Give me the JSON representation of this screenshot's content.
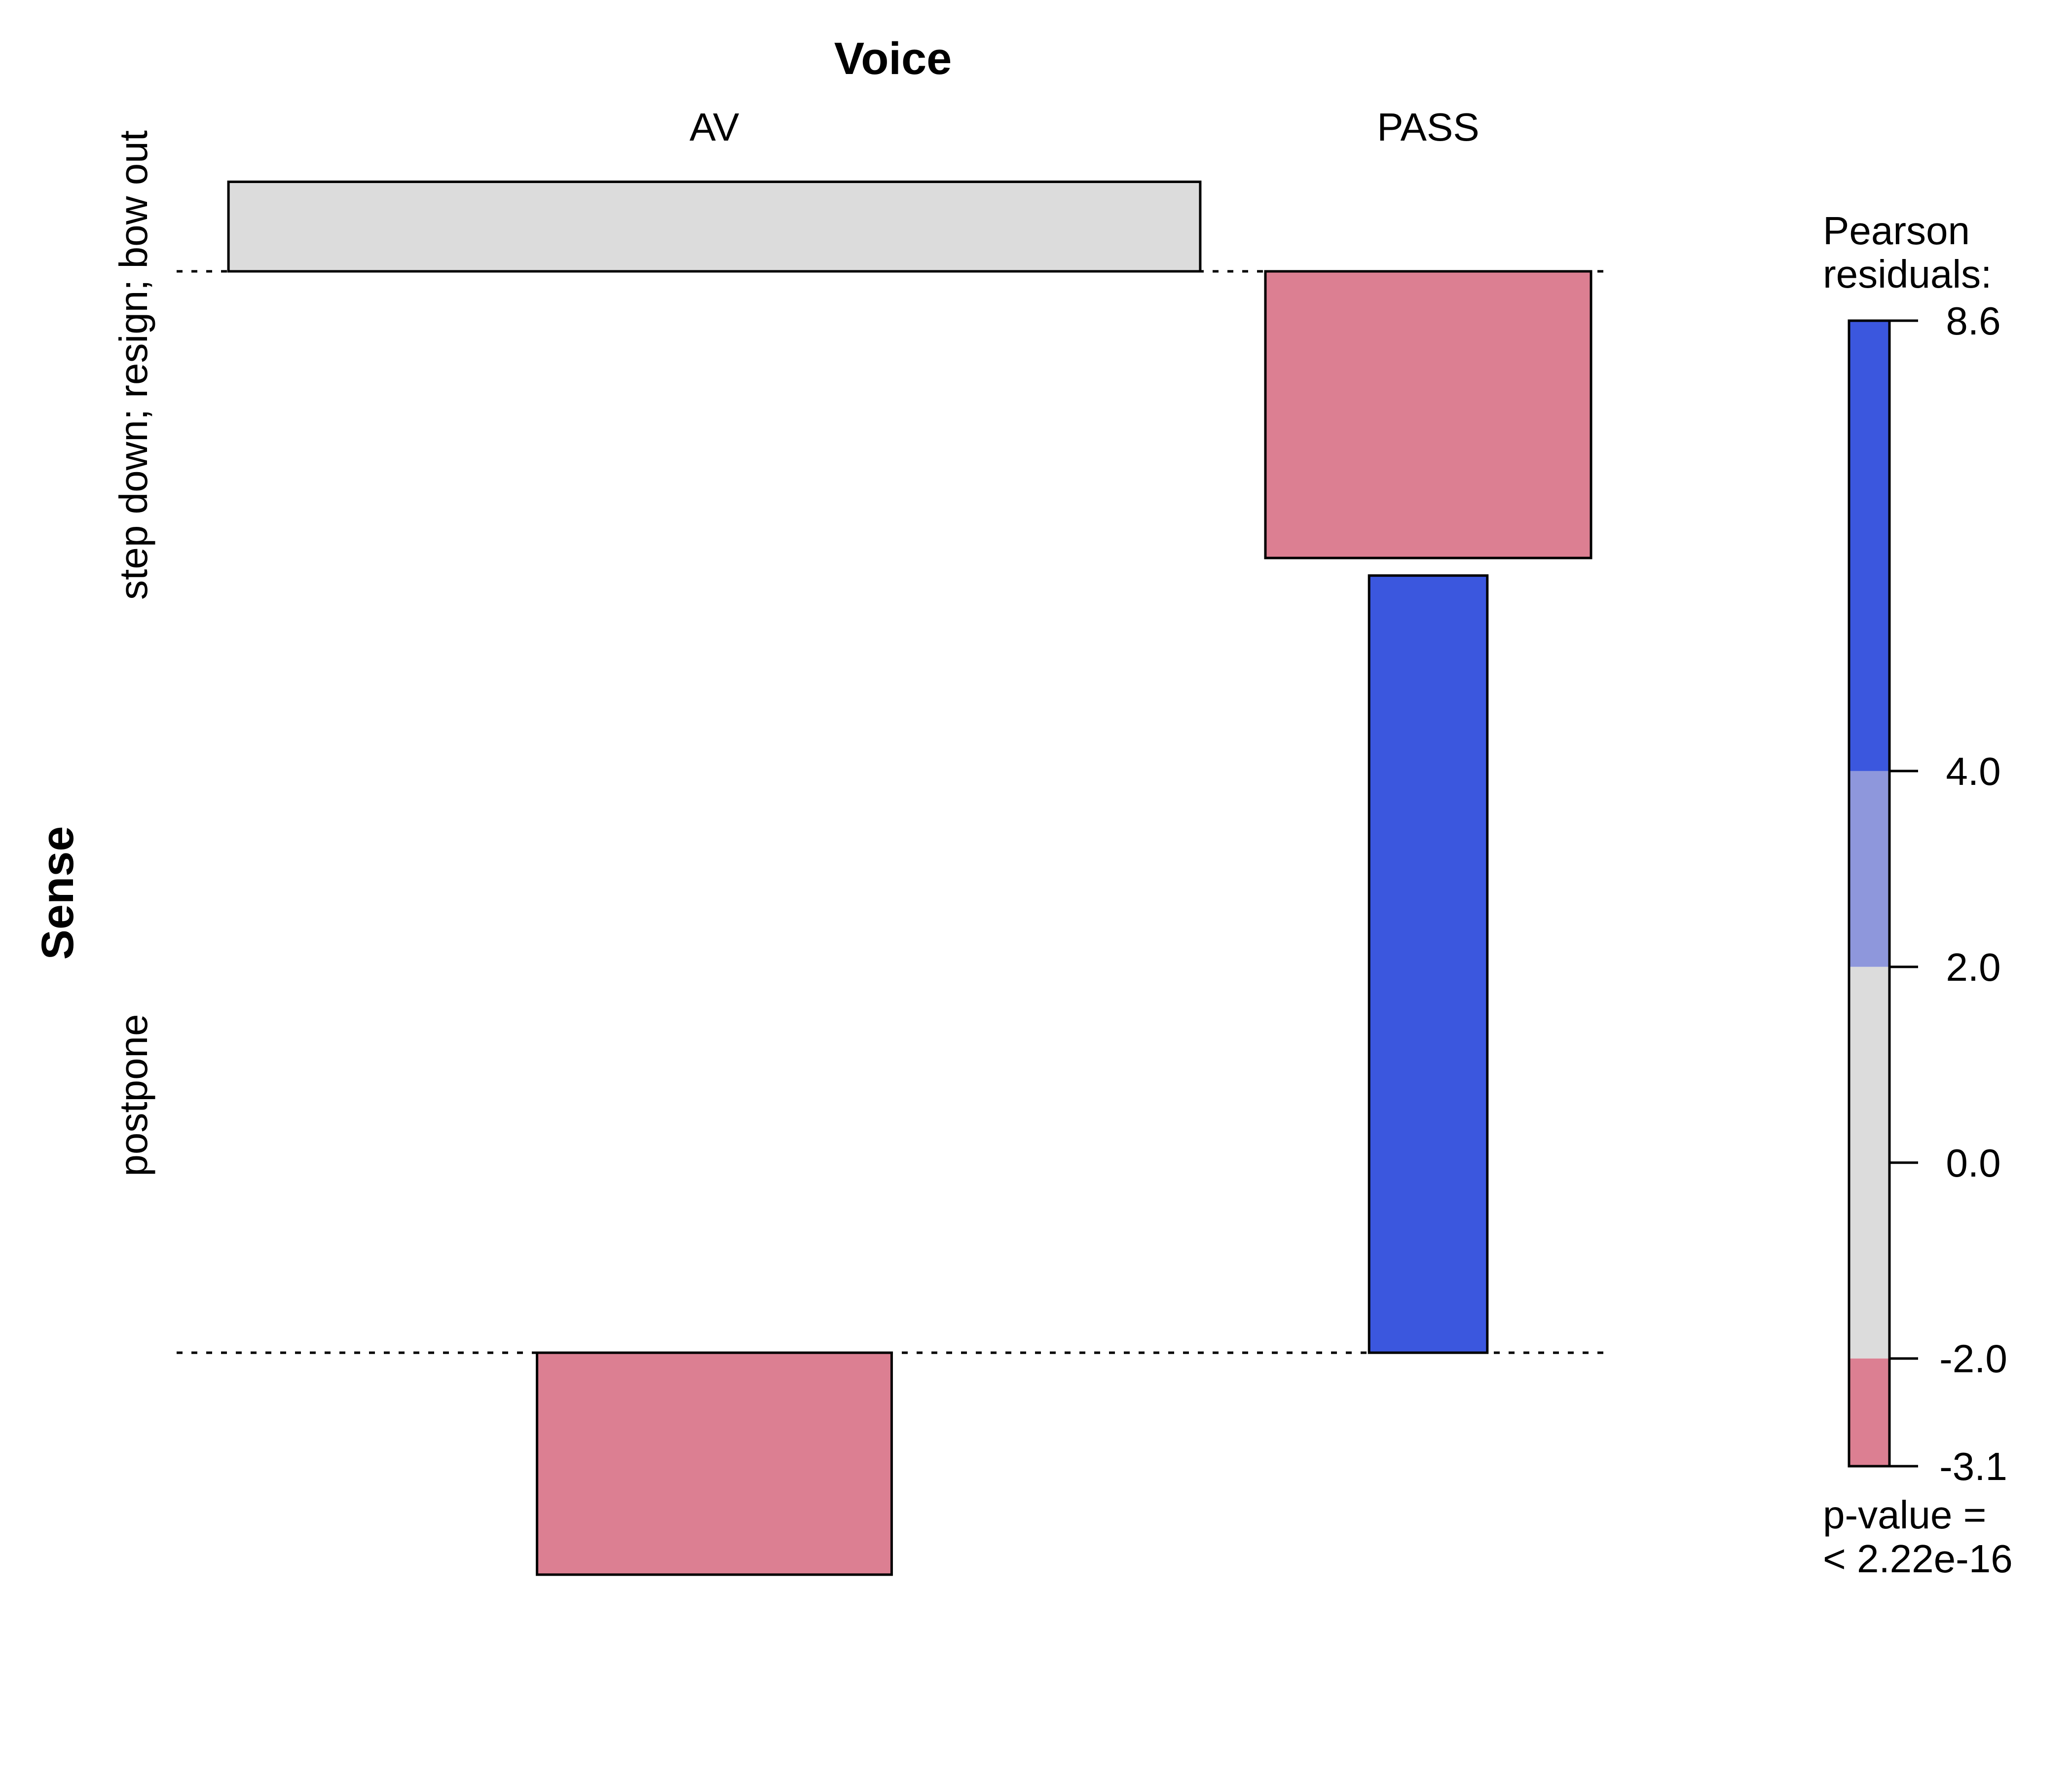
{
  "chart_data": {
    "type": "association",
    "title": "Voice",
    "ylabel": "Sense",
    "columns": [
      "AV",
      "PASS"
    ],
    "rows": [
      "step down; resign; bow out",
      "postpone"
    ],
    "residuals": [
      {
        "row": "step down; resign; bow out",
        "column": "AV",
        "value": 1.2
      },
      {
        "row": "step down; resign; bow out",
        "column": "PASS",
        "value": -3.1
      },
      {
        "row": "postpone",
        "column": "AV",
        "value": -2.4
      },
      {
        "row": "postpone",
        "column": "PASS",
        "value": 8.6
      }
    ],
    "legend": {
      "title_line1": "Pearson",
      "title_line2": "residuals:",
      "ticks": [
        "8.6",
        "4.0",
        "2.0",
        "0.0",
        "-2.0",
        "-3.1"
      ],
      "tick_values": [
        8.6,
        4.0,
        2.0,
        0.0,
        -2.0,
        -3.1
      ],
      "range": [
        -3.1,
        8.6
      ],
      "bands": [
        {
          "from": 4.0,
          "to": 8.6,
          "color": "#3b57de"
        },
        {
          "from": 2.0,
          "to": 4.0,
          "color": "#8e97dc"
        },
        {
          "from": -2.0,
          "to": 2.0,
          "color": "#dcdcdc"
        },
        {
          "from": -3.1,
          "to": -2.0,
          "color": "#dc7f92"
        }
      ],
      "pvalue_line1": "p-value =",
      "pvalue_line2": "< 2.22e-16"
    },
    "legend_position": "right"
  }
}
